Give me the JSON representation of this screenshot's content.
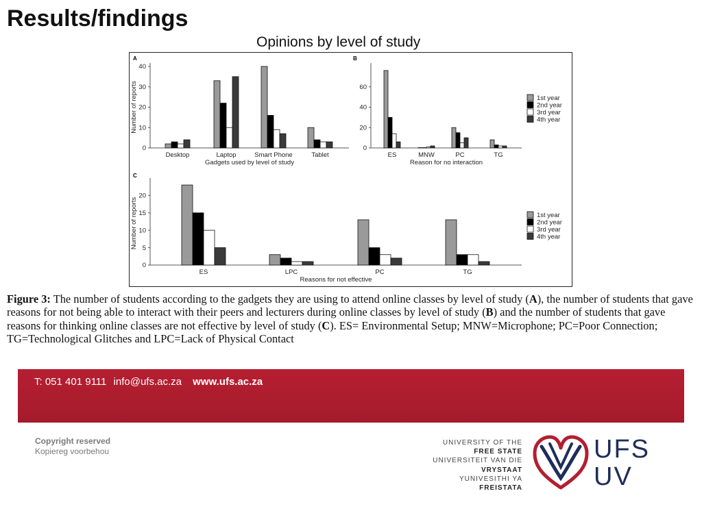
{
  "slide": {
    "title": "Results/findings",
    "figure_heading": "Opinions by level of study"
  },
  "caption": {
    "label": "Figure 3:",
    "part1": " The number of students according to the gadgets they are using to attend online classes by level of study (",
    "ref_a": "A",
    "part2": "), the number of students that gave reasons for not being able to interact with their peers and lecturers during online classes by level of study (",
    "ref_b": "B",
    "part3": ") and the number of students that gave reasons for thinking online classes are not effective by level of study (",
    "ref_c": "C",
    "part4": "). ES= Environmental Setup; MNW=Microphone; PC=Poor Connection; TG=Technological Glitches and LPC=Lack of Physical Contact"
  },
  "footer": {
    "phone": "T: 051 401 9111",
    "email": "info@ufs.ac.za",
    "web": "www.ufs.ac.za",
    "copyright_line1": "Copyright reserved",
    "copyright_line2": "Kopiereg voorbehou",
    "university_lines": [
      "UNIVERSITY OF THE",
      "FREE STATE",
      "UNIVERSITEIT VAN DIE",
      "VRYSTAAT",
      "YUNIVESITHI YA",
      "FREISTATA"
    ],
    "logo_text_1": "UFS",
    "logo_text_2": "UV",
    "colors": {
      "band": "#b31e30",
      "logo_red": "#b31e30",
      "logo_blue": "#1e2d5a"
    }
  },
  "chart_data": [
    {
      "panel": "A",
      "type": "bar",
      "xlabel": "Gadgets used by level of study",
      "ylabel": "Number of reports",
      "ylim": [
        0,
        40
      ],
      "yticks": [
        0,
        10,
        20,
        30,
        40
      ],
      "categories": [
        "Desktop",
        "Laptop",
        "Smart Phone",
        "Tablet"
      ],
      "series": [
        {
          "name": "1st year",
          "color": "#9a9a9a",
          "values": [
            2,
            33,
            40,
            10
          ]
        },
        {
          "name": "2nd year",
          "color": "#000000",
          "values": [
            3,
            22,
            16,
            4
          ]
        },
        {
          "name": "3rd year",
          "color": "#ffffff",
          "values": [
            2,
            10,
            9,
            3
          ]
        },
        {
          "name": "4th year",
          "color": "#3a3a3a",
          "values": [
            4,
            35,
            7,
            3
          ]
        }
      ],
      "legend": "none"
    },
    {
      "panel": "B",
      "type": "bar",
      "xlabel": "Reason for no interaction",
      "ylabel": "",
      "ylim": [
        0,
        80
      ],
      "yticks": [
        0,
        20,
        40,
        60
      ],
      "categories": [
        "ES",
        "MNW",
        "PC",
        "TG"
      ],
      "series": [
        {
          "name": "1st year",
          "color": "#9a9a9a",
          "values": [
            76,
            0,
            20,
            8
          ]
        },
        {
          "name": "2nd year",
          "color": "#000000",
          "values": [
            30,
            0,
            15,
            3
          ]
        },
        {
          "name": "3rd year",
          "color": "#ffffff",
          "values": [
            14,
            1,
            5,
            2
          ]
        },
        {
          "name": "4th year",
          "color": "#3a3a3a",
          "values": [
            6,
            2,
            10,
            2
          ]
        }
      ],
      "legend": "right"
    },
    {
      "panel": "C",
      "type": "bar",
      "xlabel": "Reasons for not effective",
      "ylabel": "Number of reports",
      "ylim": [
        0,
        24
      ],
      "yticks": [
        0,
        5,
        10,
        15,
        20
      ],
      "categories": [
        "ES",
        "LPC",
        "PC",
        "TG"
      ],
      "series": [
        {
          "name": "1st year",
          "color": "#9a9a9a",
          "values": [
            23,
            3,
            13,
            13
          ]
        },
        {
          "name": "2nd year",
          "color": "#000000",
          "values": [
            15,
            2,
            5,
            3
          ]
        },
        {
          "name": "3rd year",
          "color": "#ffffff",
          "values": [
            10,
            1,
            3,
            3
          ]
        },
        {
          "name": "4th year",
          "color": "#3a3a3a",
          "values": [
            5,
            1,
            2,
            1
          ]
        }
      ],
      "legend": "right"
    }
  ]
}
